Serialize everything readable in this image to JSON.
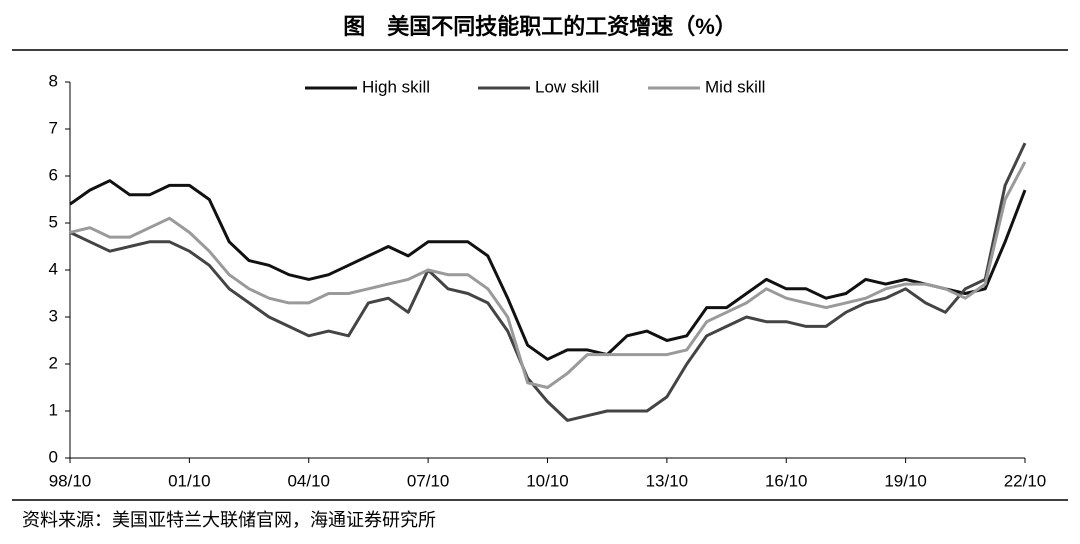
{
  "chart_data": {
    "type": "line",
    "title": "图　美国不同技能职工的工资增速（%）",
    "source": "资料来源：美国亚特兰大联储官网，海通证券研究所",
    "categories": [
      "98/10",
      null,
      null,
      null,
      null,
      null,
      "01/10",
      null,
      null,
      null,
      null,
      null,
      "04/10",
      null,
      null,
      null,
      null,
      null,
      "07/10",
      null,
      null,
      null,
      null,
      null,
      "10/10",
      null,
      null,
      null,
      null,
      null,
      "13/10",
      null,
      null,
      null,
      null,
      null,
      "16/10",
      null,
      null,
      null,
      null,
      null,
      "19/10",
      null,
      null,
      null,
      null,
      null,
      "22/10"
    ],
    "series": [
      {
        "name": "High skill",
        "color": "#111111",
        "values": [
          5.4,
          5.7,
          5.9,
          5.6,
          5.6,
          5.8,
          5.8,
          5.5,
          4.6,
          4.2,
          4.1,
          3.9,
          3.8,
          3.9,
          4.1,
          4.3,
          4.5,
          4.3,
          4.6,
          4.6,
          4.6,
          4.3,
          3.4,
          2.4,
          2.1,
          2.3,
          2.3,
          2.2,
          2.6,
          2.7,
          2.5,
          2.6,
          3.2,
          3.2,
          3.5,
          3.8,
          3.6,
          3.6,
          3.4,
          3.5,
          3.8,
          3.7,
          3.8,
          3.7,
          3.6,
          3.5,
          3.6,
          4.6,
          5.7
        ]
      },
      {
        "name": "Low skill",
        "color": "#444444",
        "values": [
          4.8,
          4.6,
          4.4,
          4.5,
          4.6,
          4.6,
          4.4,
          4.1,
          3.6,
          3.3,
          3.0,
          2.8,
          2.6,
          2.7,
          2.6,
          3.3,
          3.4,
          3.1,
          4.0,
          3.6,
          3.5,
          3.3,
          2.7,
          1.7,
          1.2,
          0.8,
          0.9,
          1.0,
          1.0,
          1.0,
          1.3,
          2.0,
          2.6,
          2.8,
          3.0,
          2.9,
          2.9,
          2.8,
          2.8,
          3.1,
          3.3,
          3.4,
          3.6,
          3.3,
          3.1,
          3.6,
          3.8,
          5.8,
          6.7
        ]
      },
      {
        "name": "Mid skill",
        "color": "#9a9a9a",
        "values": [
          4.8,
          4.9,
          4.7,
          4.7,
          4.9,
          5.1,
          4.8,
          4.4,
          3.9,
          3.6,
          3.4,
          3.3,
          3.3,
          3.5,
          3.5,
          3.6,
          3.7,
          3.8,
          4.0,
          3.9,
          3.9,
          3.6,
          3.0,
          1.6,
          1.5,
          1.8,
          2.2,
          2.2,
          2.2,
          2.2,
          2.2,
          2.3,
          2.9,
          3.1,
          3.3,
          3.6,
          3.4,
          3.3,
          3.2,
          3.3,
          3.4,
          3.6,
          3.7,
          3.7,
          3.6,
          3.4,
          3.7,
          5.5,
          6.3
        ]
      }
    ],
    "ylim": [
      0,
      8
    ],
    "yticks": [
      0,
      1,
      2,
      3,
      4,
      5,
      6,
      7,
      8
    ],
    "legend": "top"
  }
}
